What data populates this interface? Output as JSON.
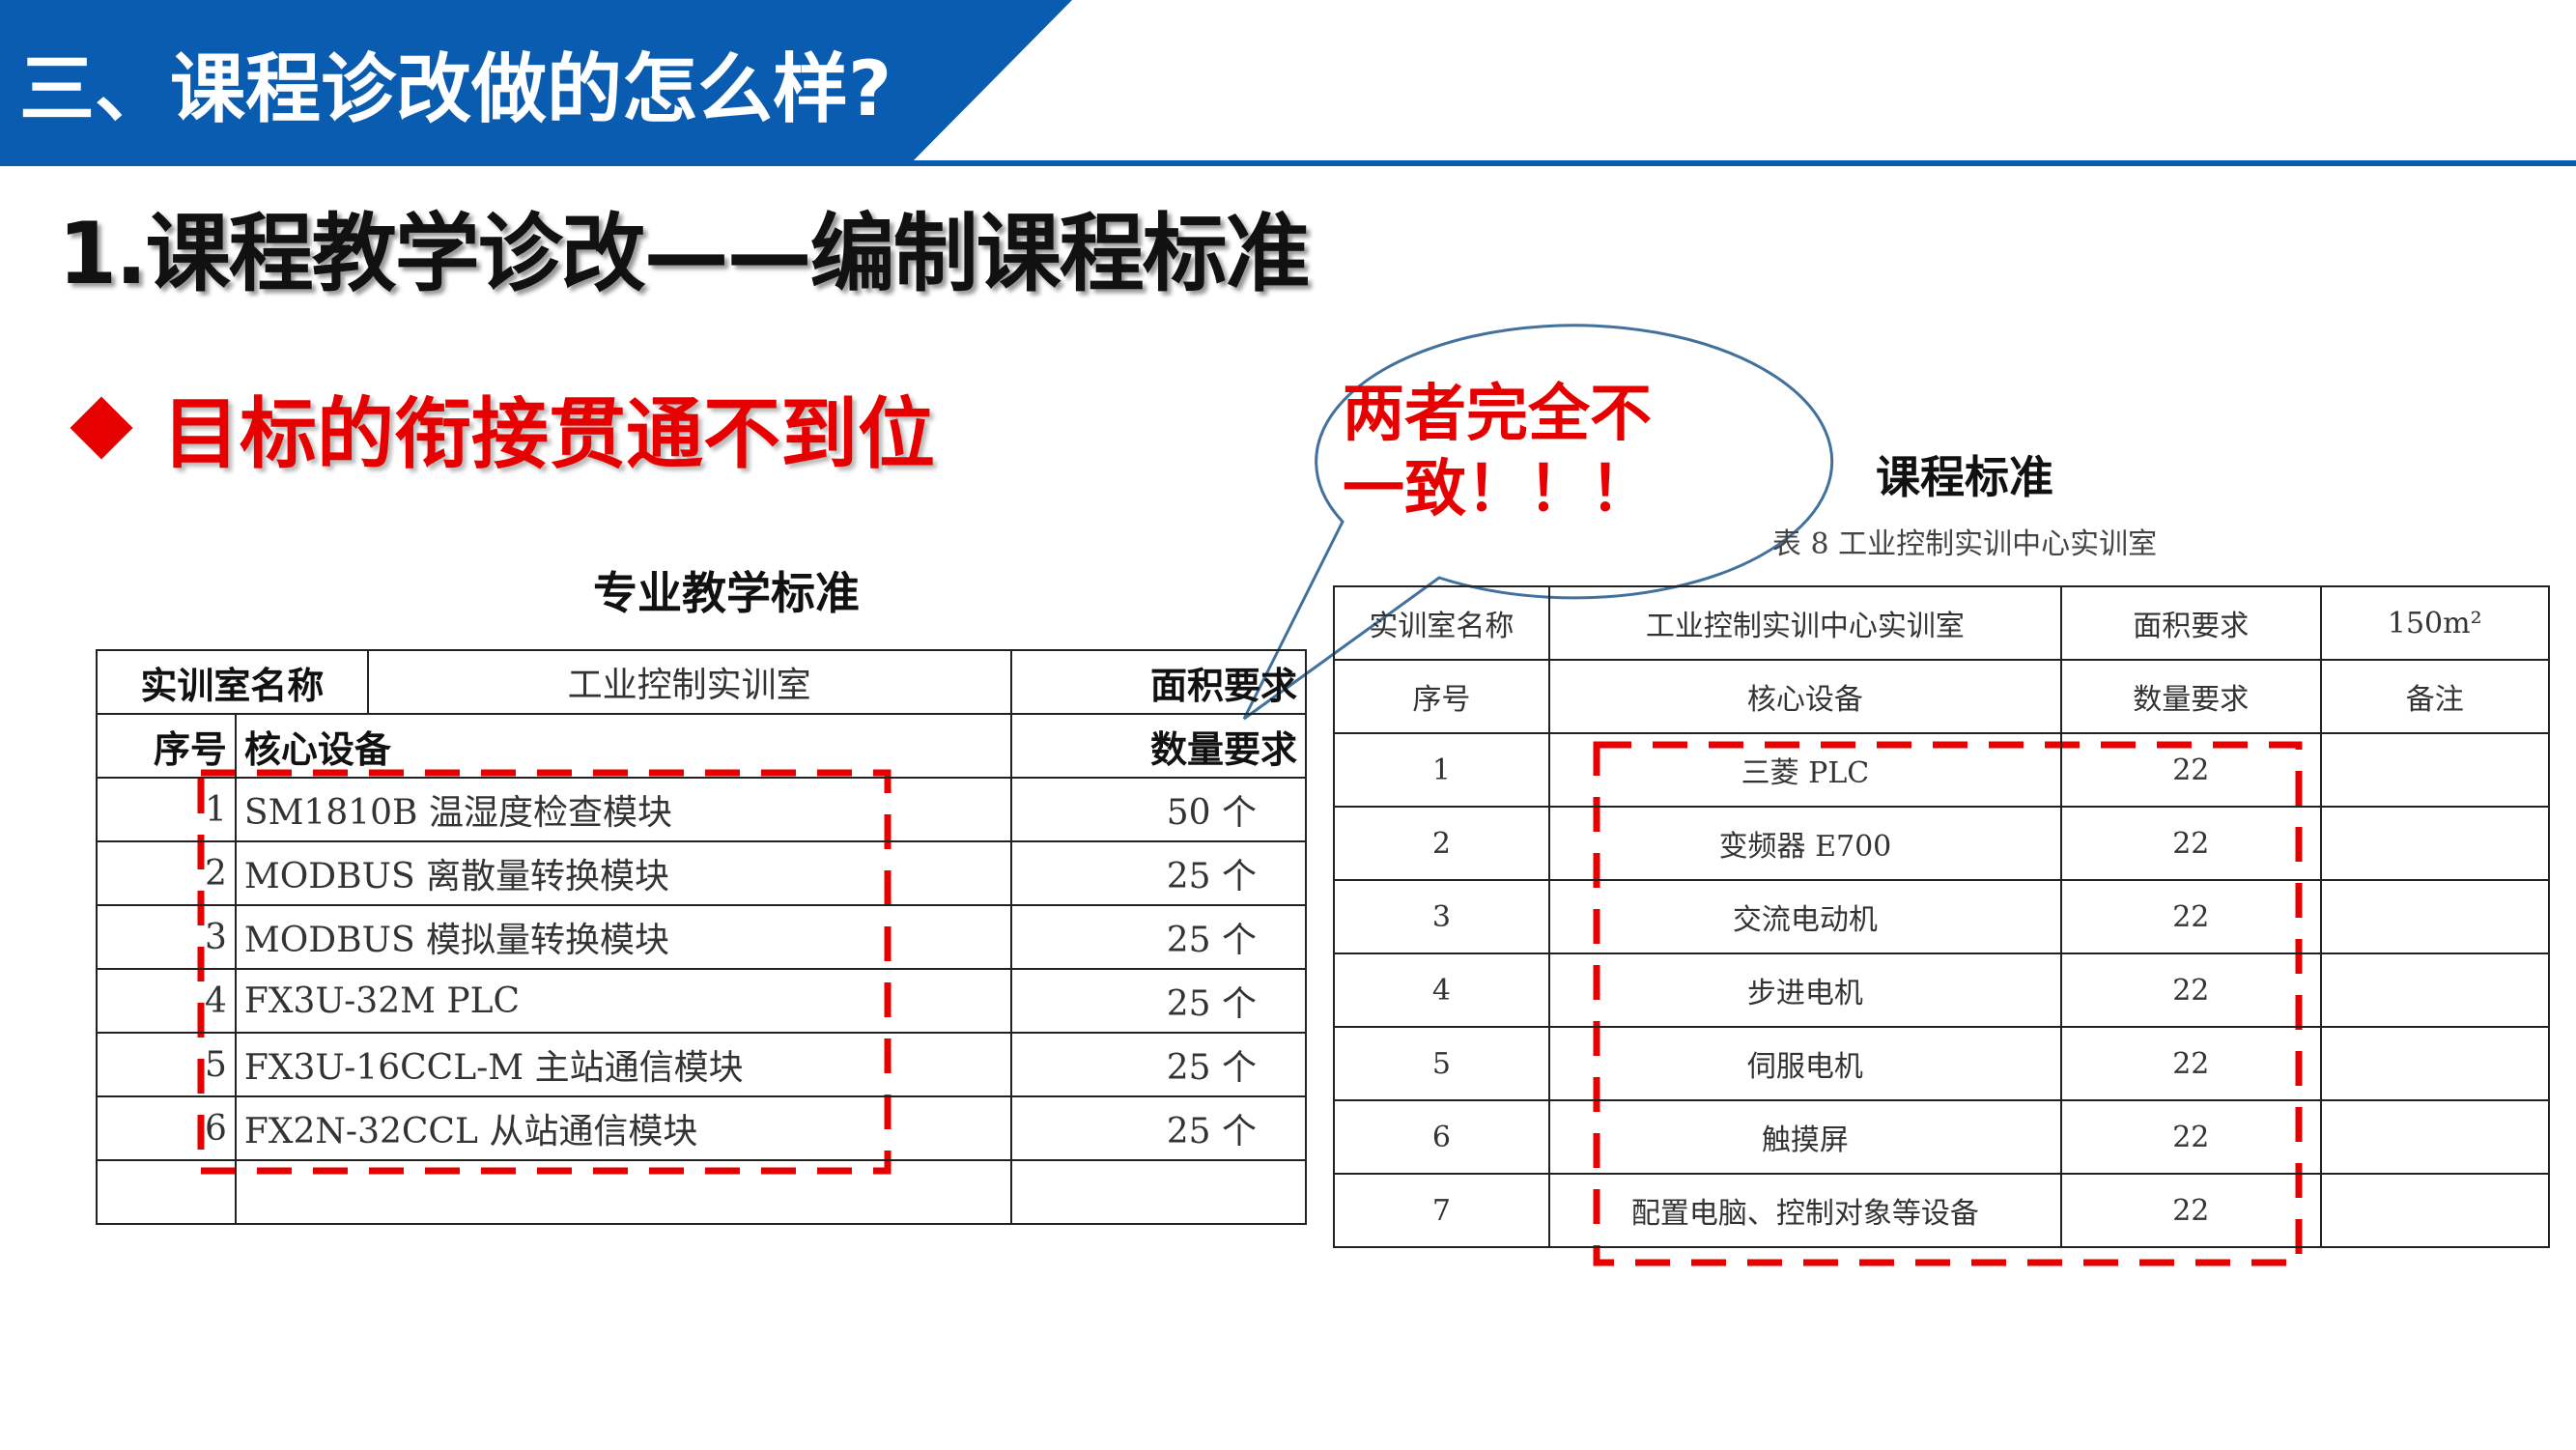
{
  "header": {
    "title": "三、课程诊改做的怎么样?",
    "color": "#0a5cb0"
  },
  "main_title": "1.课程教学诊改——编制课程标准",
  "point": {
    "icon": "diamond-bullet-icon",
    "text": "目标的衔接贯通不到位",
    "color": "#e60000"
  },
  "bubble": {
    "line1": "两者完全不",
    "line2": "一致！！！"
  },
  "left": {
    "title": "专业教学标准",
    "room_label": "实训室名称",
    "room_value": "工业控制实训室",
    "area_label": "面积要求",
    "col_no": "序号",
    "col_device": "核心设备",
    "col_qty": "数量要求",
    "rows": [
      {
        "no": "1",
        "device": "SM1810B 温湿度检查模块",
        "qty": "50 个"
      },
      {
        "no": "2",
        "device": "MODBUS 离散量转换模块",
        "qty": "25 个"
      },
      {
        "no": "3",
        "device": "MODBUS 模拟量转换模块",
        "qty": "25 个"
      },
      {
        "no": "4",
        "device": "FX3U-32M PLC",
        "qty": "25 个"
      },
      {
        "no": "5",
        "device": "FX3U-16CCL-M 主站通信模块",
        "qty": "25 个"
      },
      {
        "no": "6",
        "device": "FX2N-32CCL 从站通信模块",
        "qty": "25 个"
      }
    ]
  },
  "right": {
    "title": "课程标准",
    "caption": "表 8 工业控制实训中心实训室",
    "room_label": "实训室名称",
    "room_value": "工业控制实训中心实训室",
    "area_label": "面积要求",
    "area_value": "150m²",
    "col_no": "序号",
    "col_device": "核心设备",
    "col_qty": "数量要求",
    "col_note": "备注",
    "rows": [
      {
        "no": "1",
        "device": "三菱 PLC",
        "qty": "22"
      },
      {
        "no": "2",
        "device": "变频器 E700",
        "qty": "22"
      },
      {
        "no": "3",
        "device": "交流电动机",
        "qty": "22"
      },
      {
        "no": "4",
        "device": "步进电机",
        "qty": "22"
      },
      {
        "no": "5",
        "device": "伺服电机",
        "qty": "22"
      },
      {
        "no": "6",
        "device": "触摸屏",
        "qty": "22"
      },
      {
        "no": "7",
        "device": "配置电脑、控制对象等设备",
        "qty": "22"
      }
    ]
  },
  "colors": {
    "highlight_dash": "#e60000",
    "bubble_stroke": "#41719c"
  }
}
